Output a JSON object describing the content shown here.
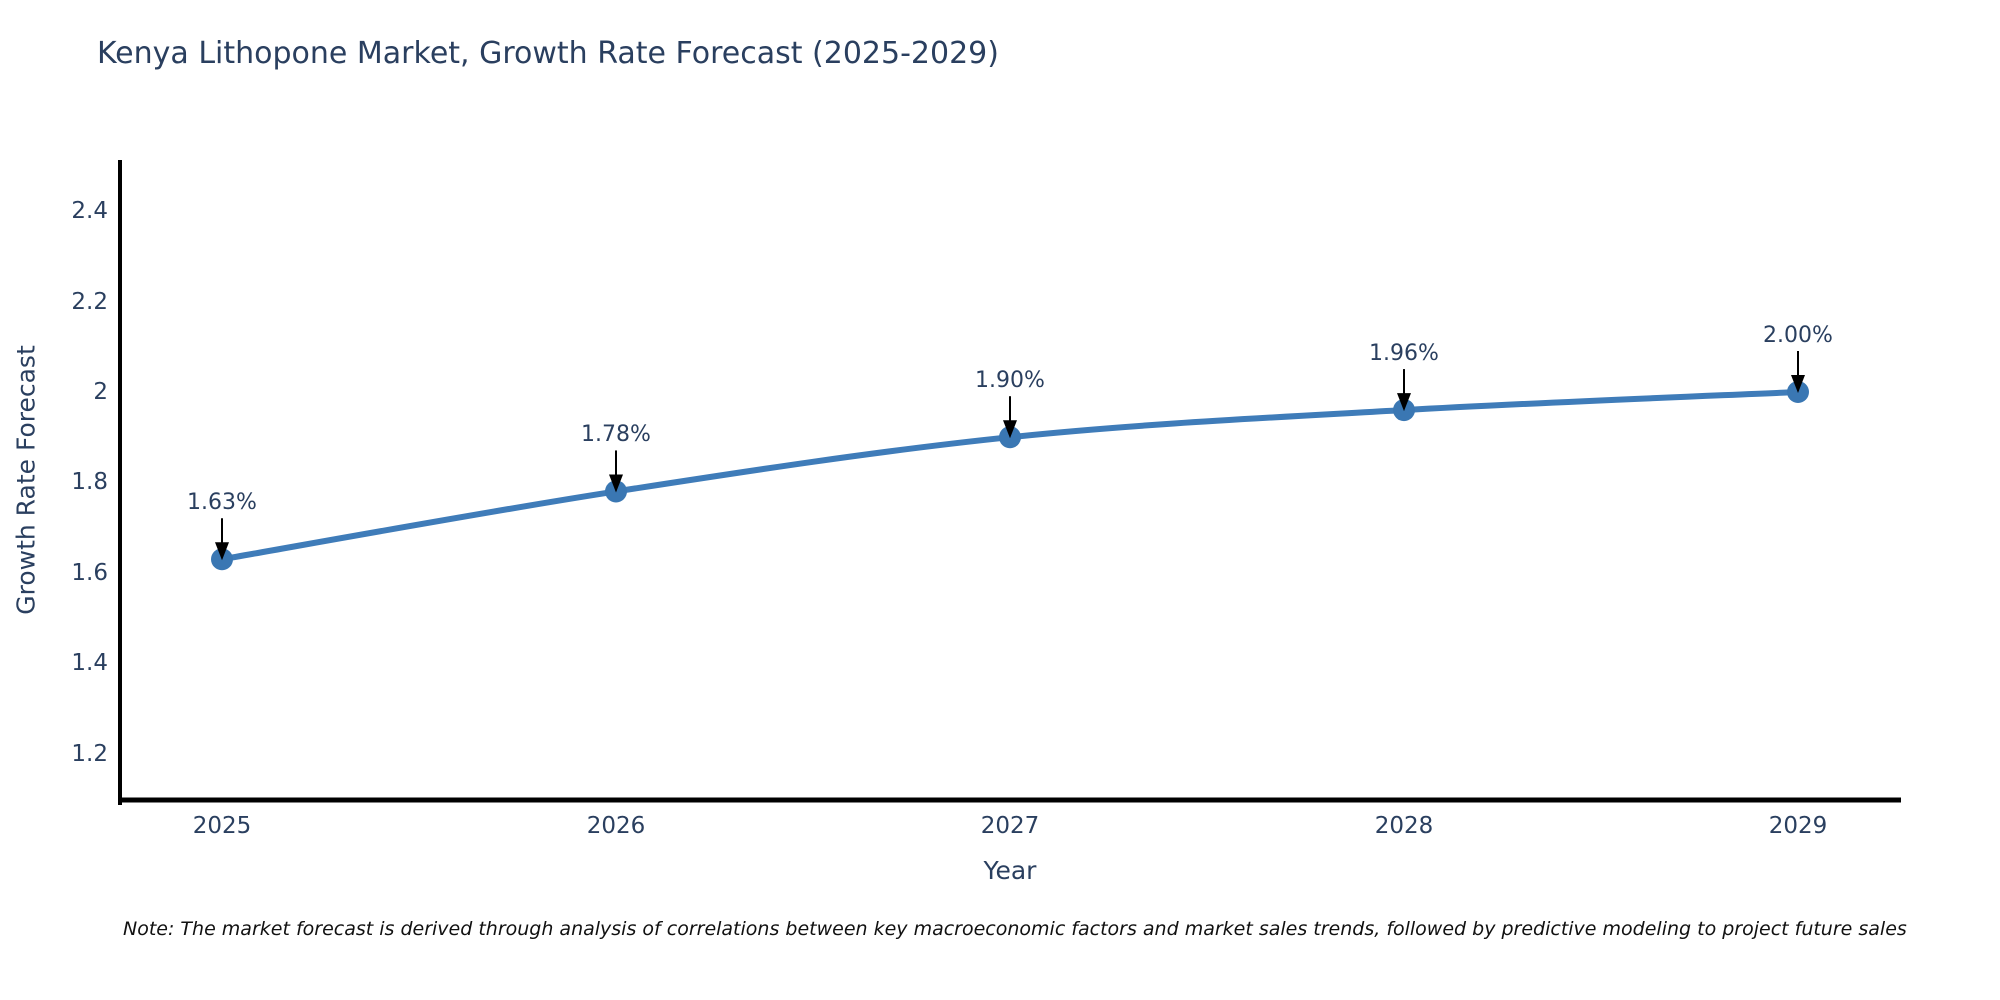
{
  "title": "Kenya Lithopone Market, Growth Rate Forecast (2025-2029)",
  "note": "Note: The market forecast is derived through analysis of correlations between key macroeconomic factors and market sales trends, followed by predictive modeling to project future sales",
  "chart_data": {
    "type": "line",
    "title": "Kenya Lithopone Market, Growth Rate Forecast (2025-2029)",
    "xlabel": "Year",
    "ylabel": "Growth Rate Forecast",
    "x": [
      2025,
      2026,
      2027,
      2028,
      2029
    ],
    "series": [
      {
        "name": "Growth Rate Forecast (%)",
        "values": [
          1.63,
          1.78,
          1.9,
          1.96,
          2.0
        ]
      }
    ],
    "point_labels": [
      "1.63%",
      "1.78%",
      "1.90%",
      "1.96%",
      "2.00%"
    ],
    "x_tick_labels": [
      "2025",
      "2026",
      "2027",
      "2028",
      "2029"
    ],
    "y_ticks": [
      2.4,
      2.2,
      2.0,
      1.8,
      1.6,
      1.4,
      1.2
    ],
    "y_tick_labels": [
      "2.4",
      "2.2",
      "2",
      "1.8",
      "1.6",
      "1.4",
      "1.2"
    ],
    "ylim": [
      1.05,
      2.5
    ],
    "grid": false,
    "legend": "none",
    "line_shape": "spline",
    "marker": "circle",
    "annotation_arrows": true,
    "colors": {
      "line": "#3f7cb9",
      "marker": "#3a77b3",
      "axis": "#000000",
      "text": "#2a3f5f",
      "note_text": "#111111",
      "background": "#ffffff"
    }
  }
}
